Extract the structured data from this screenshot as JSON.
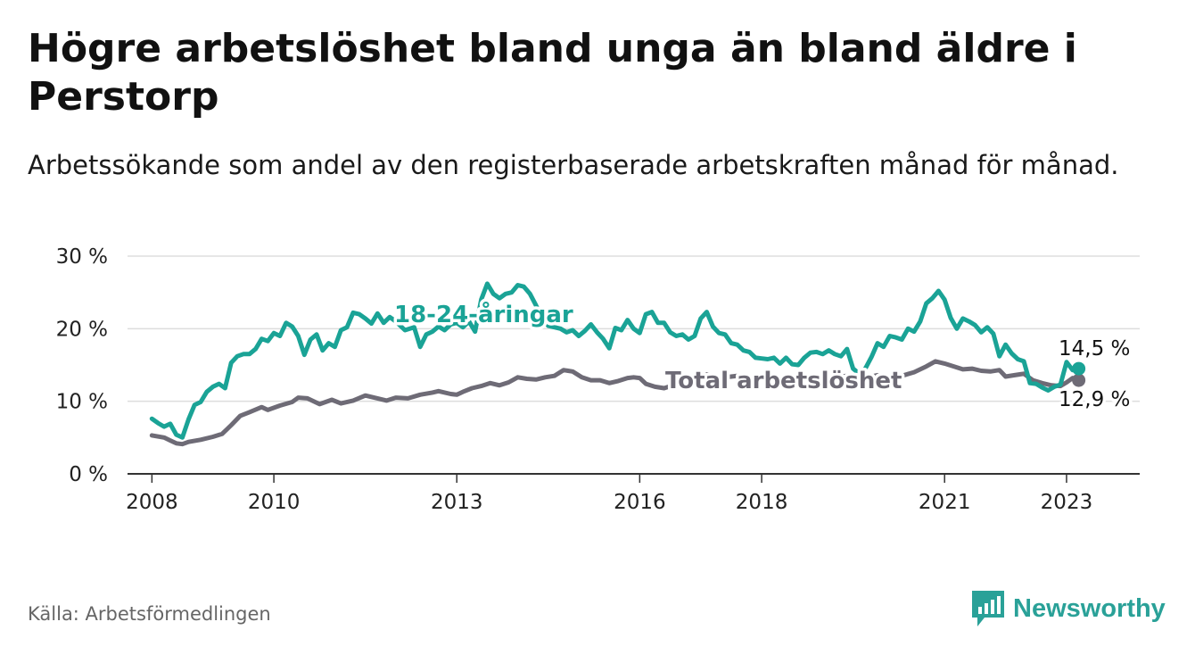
{
  "title": "Högre arbetslöshet bland unga än bland äldre i Perstorp",
  "subtitle": "Arbetssökande som andel av den registerbaserade arbetskraften månad för månad.",
  "source": "Källa: Arbetsförmedlingen",
  "brand": {
    "name": "Newsworthy",
    "icon": "newsworthy-logo-icon"
  },
  "colors": {
    "youth": "#1aa396",
    "total": "#6e6b76",
    "grid": "#dddddd",
    "axis": "#333333",
    "brand": "#2aa198"
  },
  "chart_data": {
    "type": "line",
    "xlim": [
      2007.6,
      2024.2
    ],
    "ylim": [
      0,
      30
    ],
    "yticks": [
      0,
      10,
      20,
      30
    ],
    "ytick_labels": [
      "0 %",
      "10 %",
      "20 %",
      "30 %"
    ],
    "xticks": [
      2008,
      2010,
      2013,
      2016,
      2018,
      2021,
      2023
    ],
    "xtick_labels": [
      "2008",
      "2010",
      "2013",
      "2016",
      "2018",
      "2021",
      "2023"
    ],
    "series": [
      {
        "name": "18-24-åringar",
        "label": "18-24-åringar",
        "end_label": "14,5 %",
        "points": [
          [
            2008.0,
            7.6
          ],
          [
            2008.1,
            7.0
          ],
          [
            2008.2,
            6.5
          ],
          [
            2008.3,
            6.9
          ],
          [
            2008.4,
            5.4
          ],
          [
            2008.5,
            5.0
          ],
          [
            2008.6,
            7.5
          ],
          [
            2008.7,
            9.5
          ],
          [
            2008.8,
            9.9
          ],
          [
            2008.9,
            11.3
          ],
          [
            2009.0,
            12.0
          ],
          [
            2009.1,
            12.4
          ],
          [
            2009.2,
            11.8
          ],
          [
            2009.3,
            15.3
          ],
          [
            2009.4,
            16.2
          ],
          [
            2009.5,
            16.5
          ],
          [
            2009.6,
            16.5
          ],
          [
            2009.7,
            17.2
          ],
          [
            2009.8,
            18.6
          ],
          [
            2009.9,
            18.3
          ],
          [
            2010.0,
            19.4
          ],
          [
            2010.1,
            19.0
          ],
          [
            2010.2,
            20.8
          ],
          [
            2010.3,
            20.3
          ],
          [
            2010.4,
            19.0
          ],
          [
            2010.5,
            16.4
          ],
          [
            2010.6,
            18.5
          ],
          [
            2010.7,
            19.2
          ],
          [
            2010.8,
            17.0
          ],
          [
            2010.9,
            18.0
          ],
          [
            2011.0,
            17.5
          ],
          [
            2011.1,
            19.8
          ],
          [
            2011.2,
            20.2
          ],
          [
            2011.3,
            22.2
          ],
          [
            2011.4,
            22.0
          ],
          [
            2011.5,
            21.4
          ],
          [
            2011.6,
            20.7
          ],
          [
            2011.7,
            22.1
          ],
          [
            2011.8,
            20.8
          ],
          [
            2011.9,
            21.6
          ],
          [
            2012.0,
            21.0
          ],
          [
            2012.15,
            19.8
          ],
          [
            2012.3,
            20.2
          ],
          [
            2012.4,
            17.5
          ],
          [
            2012.5,
            19.2
          ],
          [
            2012.6,
            19.6
          ],
          [
            2012.7,
            20.3
          ],
          [
            2012.8,
            19.8
          ],
          [
            2012.9,
            20.6
          ],
          [
            2013.0,
            20.8
          ],
          [
            2013.1,
            20.2
          ],
          [
            2013.2,
            21.0
          ],
          [
            2013.3,
            19.6
          ],
          [
            2013.4,
            24.0
          ],
          [
            2013.5,
            26.2
          ],
          [
            2013.6,
            24.8
          ],
          [
            2013.7,
            24.2
          ],
          [
            2013.8,
            24.8
          ],
          [
            2013.9,
            25.0
          ],
          [
            2014.0,
            26.0
          ],
          [
            2014.1,
            25.8
          ],
          [
            2014.2,
            24.8
          ],
          [
            2014.3,
            23.2
          ],
          [
            2014.4,
            21.5
          ],
          [
            2014.5,
            20.4
          ],
          [
            2014.6,
            20.2
          ],
          [
            2014.7,
            20.0
          ],
          [
            2014.8,
            19.5
          ],
          [
            2014.9,
            19.8
          ],
          [
            2015.0,
            19.0
          ],
          [
            2015.1,
            19.7
          ],
          [
            2015.2,
            20.6
          ],
          [
            2015.3,
            19.5
          ],
          [
            2015.4,
            18.6
          ],
          [
            2015.5,
            17.3
          ],
          [
            2015.6,
            20.1
          ],
          [
            2015.7,
            19.8
          ],
          [
            2015.8,
            21.2
          ],
          [
            2015.9,
            20.0
          ],
          [
            2016.0,
            19.4
          ],
          [
            2016.1,
            22.0
          ],
          [
            2016.2,
            22.3
          ],
          [
            2016.3,
            20.8
          ],
          [
            2016.4,
            20.8
          ],
          [
            2016.5,
            19.5
          ],
          [
            2016.6,
            19.0
          ],
          [
            2016.7,
            19.2
          ],
          [
            2016.8,
            18.5
          ],
          [
            2016.9,
            19.0
          ],
          [
            2017.0,
            21.4
          ],
          [
            2017.1,
            22.3
          ],
          [
            2017.2,
            20.3
          ],
          [
            2017.3,
            19.4
          ],
          [
            2017.4,
            19.2
          ],
          [
            2017.5,
            18.0
          ],
          [
            2017.6,
            17.8
          ],
          [
            2017.7,
            17.0
          ],
          [
            2017.8,
            16.8
          ],
          [
            2017.9,
            16.0
          ],
          [
            2018.0,
            15.9
          ],
          [
            2018.1,
            15.8
          ],
          [
            2018.2,
            16.0
          ],
          [
            2018.3,
            15.2
          ],
          [
            2018.4,
            16.0
          ],
          [
            2018.5,
            15.1
          ],
          [
            2018.6,
            15.0
          ],
          [
            2018.7,
            16.0
          ],
          [
            2018.8,
            16.7
          ],
          [
            2018.9,
            16.8
          ],
          [
            2019.0,
            16.5
          ],
          [
            2019.1,
            17.0
          ],
          [
            2019.2,
            16.5
          ],
          [
            2019.3,
            16.2
          ],
          [
            2019.4,
            17.2
          ],
          [
            2019.5,
            14.5
          ],
          [
            2019.6,
            13.8
          ],
          [
            2019.7,
            14.5
          ],
          [
            2019.8,
            16.1
          ],
          [
            2019.9,
            18.0
          ],
          [
            2020.0,
            17.5
          ],
          [
            2020.1,
            19.0
          ],
          [
            2020.2,
            18.8
          ],
          [
            2020.3,
            18.5
          ],
          [
            2020.4,
            20.0
          ],
          [
            2020.5,
            19.6
          ],
          [
            2020.6,
            21.0
          ],
          [
            2020.7,
            23.5
          ],
          [
            2020.8,
            24.2
          ],
          [
            2020.9,
            25.2
          ],
          [
            2021.0,
            24.0
          ],
          [
            2021.1,
            21.5
          ],
          [
            2021.2,
            20.0
          ],
          [
            2021.3,
            21.4
          ],
          [
            2021.4,
            21.0
          ],
          [
            2021.5,
            20.5
          ],
          [
            2021.6,
            19.5
          ],
          [
            2021.7,
            20.2
          ],
          [
            2021.8,
            19.3
          ],
          [
            2021.9,
            16.2
          ],
          [
            2022.0,
            17.8
          ],
          [
            2022.1,
            16.6
          ],
          [
            2022.2,
            15.8
          ],
          [
            2022.3,
            15.5
          ],
          [
            2022.4,
            12.5
          ],
          [
            2022.5,
            12.4
          ],
          [
            2022.6,
            11.9
          ],
          [
            2022.7,
            11.5
          ],
          [
            2022.8,
            12.0
          ],
          [
            2022.9,
            12.3
          ],
          [
            2023.0,
            15.4
          ],
          [
            2023.1,
            14.3
          ],
          [
            2023.2,
            14.5
          ]
        ]
      },
      {
        "name": "Total arbetslöshet",
        "label": "Total arbetslöshet",
        "end_label": "12,9 %",
        "points": [
          [
            2008.0,
            5.3
          ],
          [
            2008.2,
            5.0
          ],
          [
            2008.3,
            4.6
          ],
          [
            2008.4,
            4.2
          ],
          [
            2008.5,
            4.1
          ],
          [
            2008.6,
            4.4
          ],
          [
            2008.8,
            4.7
          ],
          [
            2009.0,
            5.1
          ],
          [
            2009.15,
            5.5
          ],
          [
            2009.3,
            6.7
          ],
          [
            2009.45,
            8.0
          ],
          [
            2009.6,
            8.5
          ],
          [
            2009.8,
            9.2
          ],
          [
            2009.9,
            8.8
          ],
          [
            2010.1,
            9.4
          ],
          [
            2010.3,
            9.9
          ],
          [
            2010.4,
            10.5
          ],
          [
            2010.55,
            10.4
          ],
          [
            2010.75,
            9.6
          ],
          [
            2010.95,
            10.2
          ],
          [
            2011.1,
            9.7
          ],
          [
            2011.3,
            10.1
          ],
          [
            2011.5,
            10.8
          ],
          [
            2011.7,
            10.4
          ],
          [
            2011.85,
            10.1
          ],
          [
            2012.0,
            10.5
          ],
          [
            2012.2,
            10.4
          ],
          [
            2012.4,
            10.9
          ],
          [
            2012.6,
            11.2
          ],
          [
            2012.7,
            11.4
          ],
          [
            2012.9,
            11.0
          ],
          [
            2013.0,
            10.9
          ],
          [
            2013.1,
            11.3
          ],
          [
            2013.25,
            11.8
          ],
          [
            2013.4,
            12.1
          ],
          [
            2013.55,
            12.5
          ],
          [
            2013.7,
            12.2
          ],
          [
            2013.85,
            12.6
          ],
          [
            2014.0,
            13.3
          ],
          [
            2014.15,
            13.1
          ],
          [
            2014.3,
            13.0
          ],
          [
            2014.45,
            13.3
          ],
          [
            2014.6,
            13.5
          ],
          [
            2014.75,
            14.3
          ],
          [
            2014.9,
            14.1
          ],
          [
            2015.05,
            13.3
          ],
          [
            2015.2,
            12.9
          ],
          [
            2015.35,
            12.9
          ],
          [
            2015.5,
            12.5
          ],
          [
            2015.65,
            12.8
          ],
          [
            2015.8,
            13.2
          ],
          [
            2015.9,
            13.3
          ],
          [
            2016.0,
            13.2
          ],
          [
            2016.1,
            12.4
          ],
          [
            2016.25,
            12.0
          ],
          [
            2016.4,
            11.8
          ],
          [
            2016.55,
            12.2
          ],
          [
            2016.7,
            12.6
          ],
          [
            2016.85,
            13.0
          ],
          [
            2017.0,
            13.1
          ],
          [
            2017.1,
            13.7
          ],
          [
            2017.3,
            13.2
          ],
          [
            2017.5,
            13.4
          ],
          [
            2017.7,
            13.6
          ],
          [
            2017.9,
            13.0
          ],
          [
            2018.1,
            13.2
          ],
          [
            2018.3,
            12.9
          ],
          [
            2018.5,
            13.2
          ],
          [
            2018.7,
            13.5
          ],
          [
            2018.9,
            13.3
          ],
          [
            2019.1,
            13.1
          ],
          [
            2019.3,
            13.4
          ],
          [
            2019.5,
            13.6
          ],
          [
            2019.7,
            13.2
          ],
          [
            2019.9,
            13.6
          ],
          [
            2020.1,
            13.3
          ],
          [
            2020.3,
            13.5
          ],
          [
            2020.5,
            14.0
          ],
          [
            2020.7,
            14.8
          ],
          [
            2020.85,
            15.5
          ],
          [
            2021.0,
            15.2
          ],
          [
            2021.15,
            14.8
          ],
          [
            2021.3,
            14.4
          ],
          [
            2021.45,
            14.5
          ],
          [
            2021.6,
            14.2
          ],
          [
            2021.75,
            14.1
          ],
          [
            2021.9,
            14.3
          ],
          [
            2022.0,
            13.4
          ],
          [
            2022.15,
            13.6
          ],
          [
            2022.3,
            13.8
          ],
          [
            2022.45,
            12.9
          ],
          [
            2022.6,
            12.5
          ],
          [
            2022.75,
            12.2
          ],
          [
            2022.9,
            12.1
          ],
          [
            2023.0,
            12.6
          ],
          [
            2023.1,
            13.2
          ],
          [
            2023.2,
            12.9
          ]
        ]
      }
    ]
  }
}
